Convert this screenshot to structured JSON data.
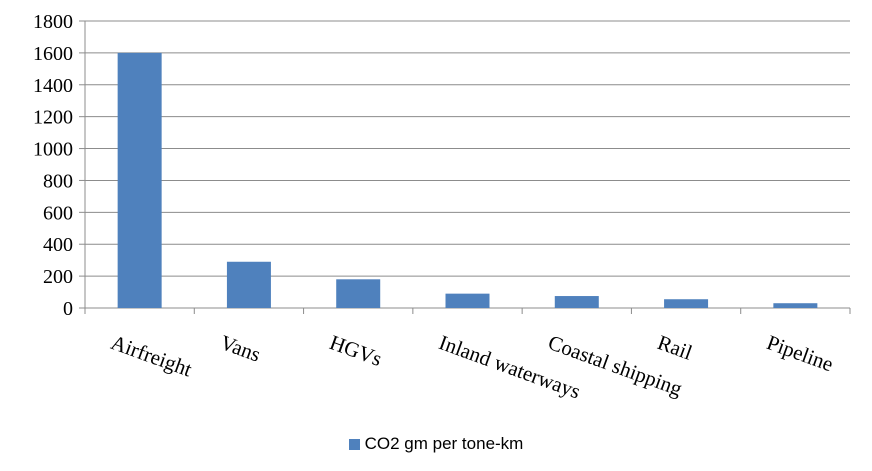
{
  "chart_data": {
    "type": "bar",
    "categories": [
      "Airfreight",
      "Vans",
      "HGVs",
      "Inland waterways",
      "Coastal shipping",
      "Rail",
      "Pipeline"
    ],
    "series": [
      {
        "name": "CO2 gm per tone-km",
        "values": [
          1600,
          290,
          180,
          90,
          75,
          55,
          30
        ],
        "color": "#4F81BD"
      }
    ],
    "ylim": [
      0,
      1800
    ],
    "yticks": [
      0,
      200,
      400,
      600,
      800,
      1000,
      1200,
      1400,
      1600,
      1800
    ],
    "grid": true,
    "legend": "bottom",
    "title": "",
    "xlabel": "",
    "ylabel": ""
  }
}
